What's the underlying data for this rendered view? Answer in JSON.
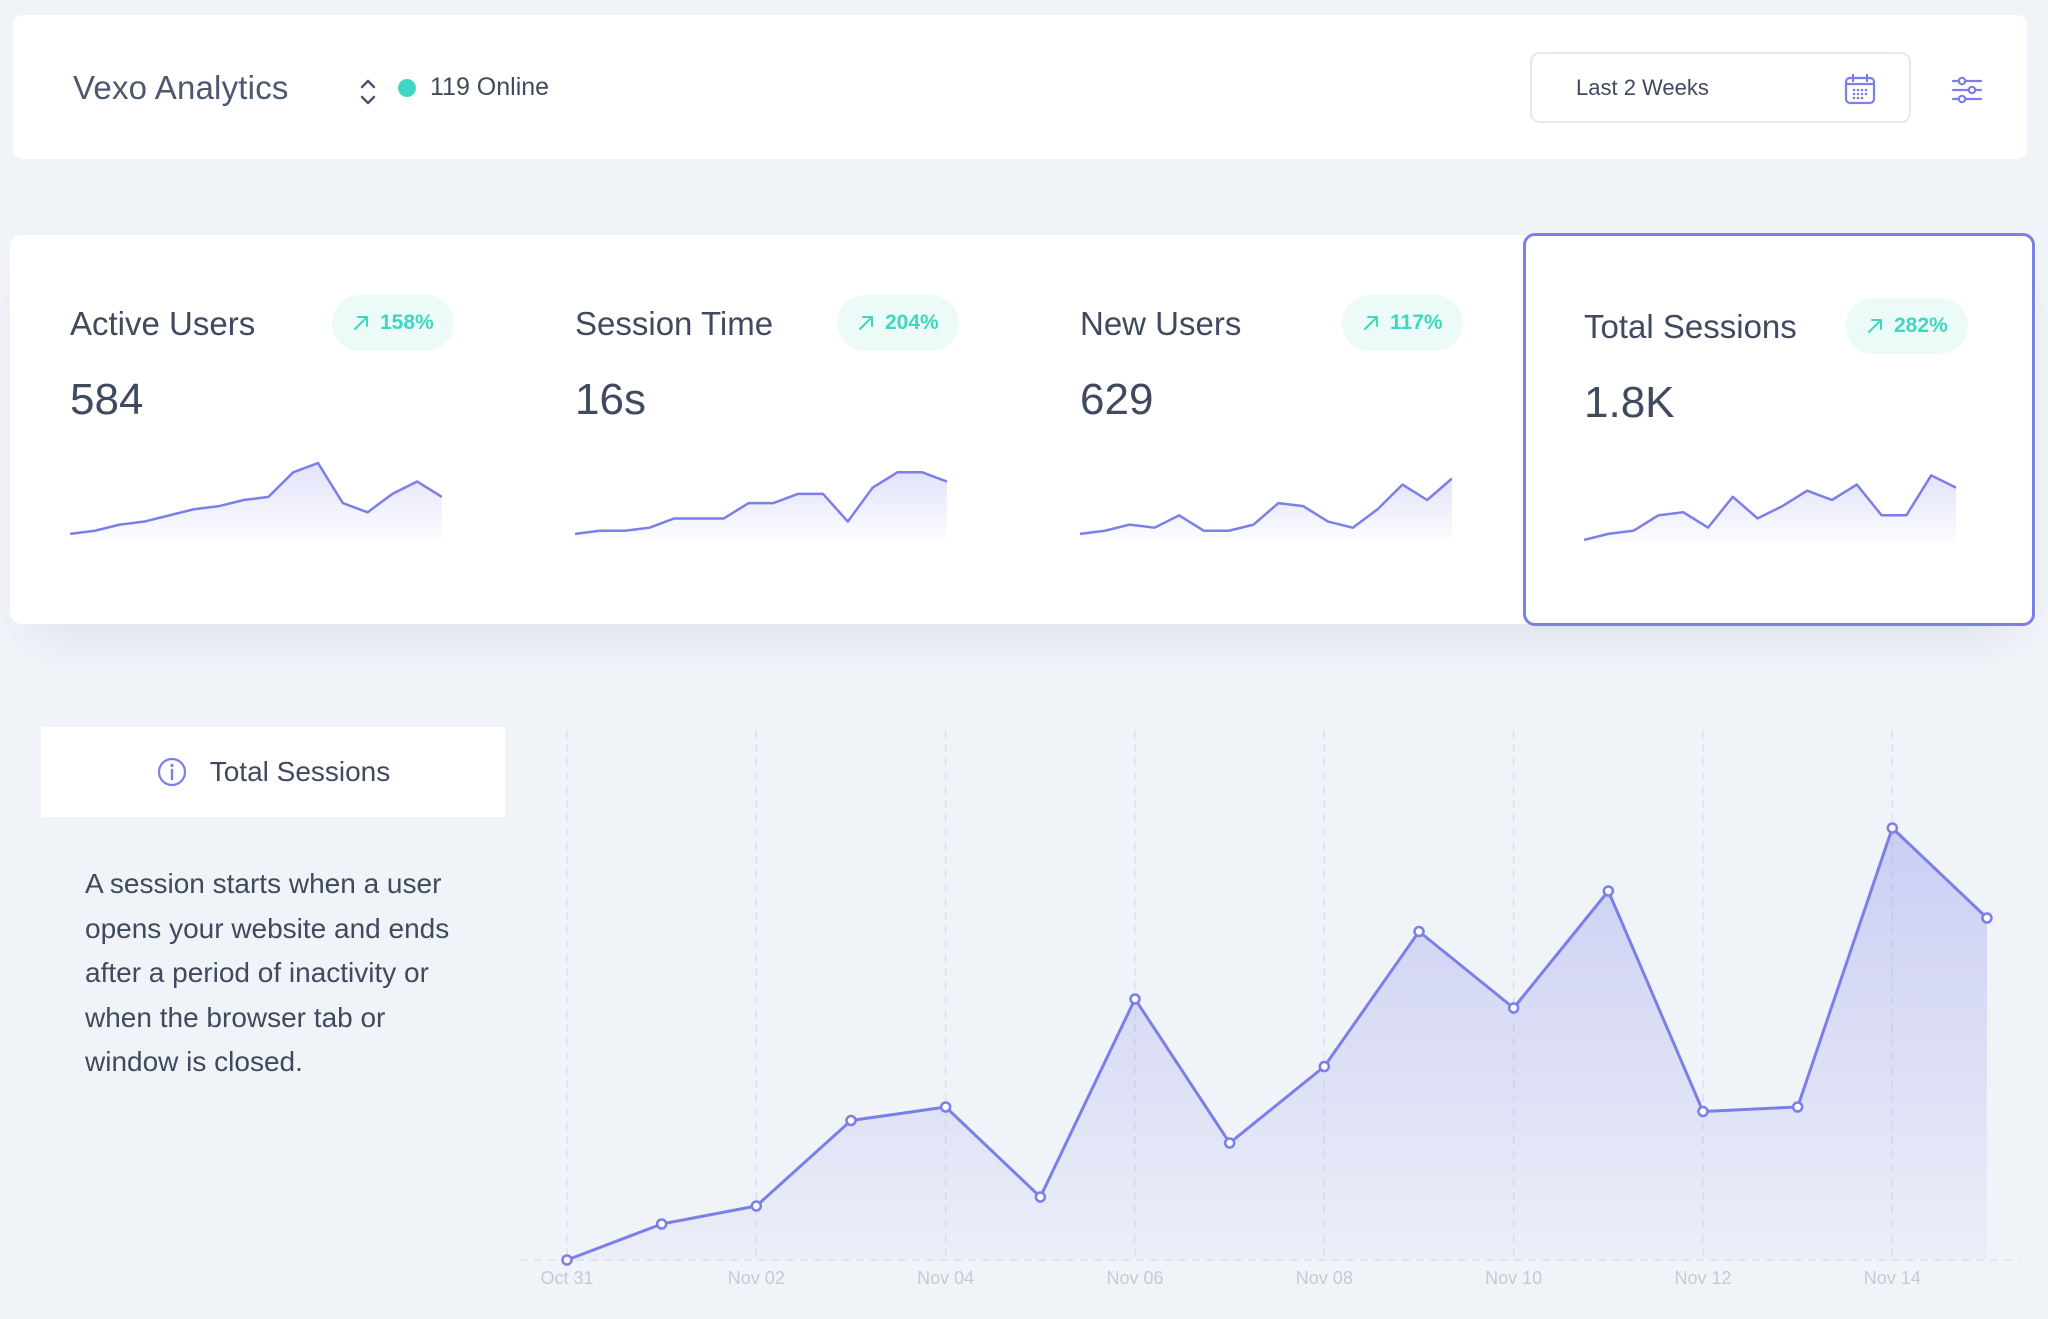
{
  "header": {
    "brand": "Vexo Analytics",
    "online_label": "119 Online",
    "date_range": "Last 2 Weeks",
    "icons": {
      "switcher": "chevron-up-down-icon",
      "calendar": "calendar-icon",
      "filters": "sliders-icon"
    },
    "colors": {
      "online_dot": "#3fd6c2"
    }
  },
  "stats": [
    {
      "title": "Active Users",
      "change": "158%",
      "value": "584",
      "trend": [
        2,
        3,
        5,
        6,
        8,
        10,
        11,
        13,
        14,
        22,
        25,
        12,
        9,
        15,
        19,
        14
      ]
    },
    {
      "title": "Session Time",
      "change": "204%",
      "value": "16s",
      "trend": [
        2,
        3,
        3,
        4,
        7,
        7,
        7,
        12,
        12,
        15,
        15,
        6,
        17,
        22,
        22,
        19
      ]
    },
    {
      "title": "New Users",
      "change": "117%",
      "value": "629",
      "trend": [
        2,
        3,
        5,
        4,
        8,
        3,
        3,
        5,
        12,
        11,
        6,
        4,
        10,
        18,
        13,
        20
      ]
    },
    {
      "title": "Total Sessions",
      "change": "282%",
      "value": "1.8K",
      "trend": [
        1,
        3,
        4,
        9,
        10,
        5,
        15,
        8,
        12,
        17,
        14,
        19,
        9,
        9,
        22,
        18
      ]
    }
  ],
  "info": {
    "title": "Total Sessions",
    "description": "A session starts when a user opens your website and ends after a period of inactivity or when the browser tab or window is closed.",
    "icon": "info-circle-icon"
  },
  "chart_data": {
    "type": "area",
    "title": "",
    "x": [
      "Oct 31",
      "Nov 01",
      "Nov 02",
      "Nov 03",
      "Nov 04",
      "Nov 05",
      "Nov 06",
      "Nov 07",
      "Nov 08",
      "Nov 09",
      "Nov 10",
      "Nov 11",
      "Nov 12",
      "Nov 13",
      "Nov 14",
      "Nov 15"
    ],
    "tick_labels": [
      "Oct 31",
      "Nov 02",
      "Nov 04",
      "Nov 06",
      "Nov 08",
      "Nov 10",
      "Nov 12",
      "Nov 14"
    ],
    "series": [
      {
        "values": [
          0,
          8,
          12,
          31,
          34,
          14,
          58,
          26,
          43,
          73,
          56,
          82,
          33,
          34,
          96,
          76
        ]
      }
    ],
    "ylim": [
      0,
      100
    ],
    "grid": "vertical dashed lines",
    "legend": "none",
    "colors": {
      "line": "#7b7fe8"
    }
  }
}
